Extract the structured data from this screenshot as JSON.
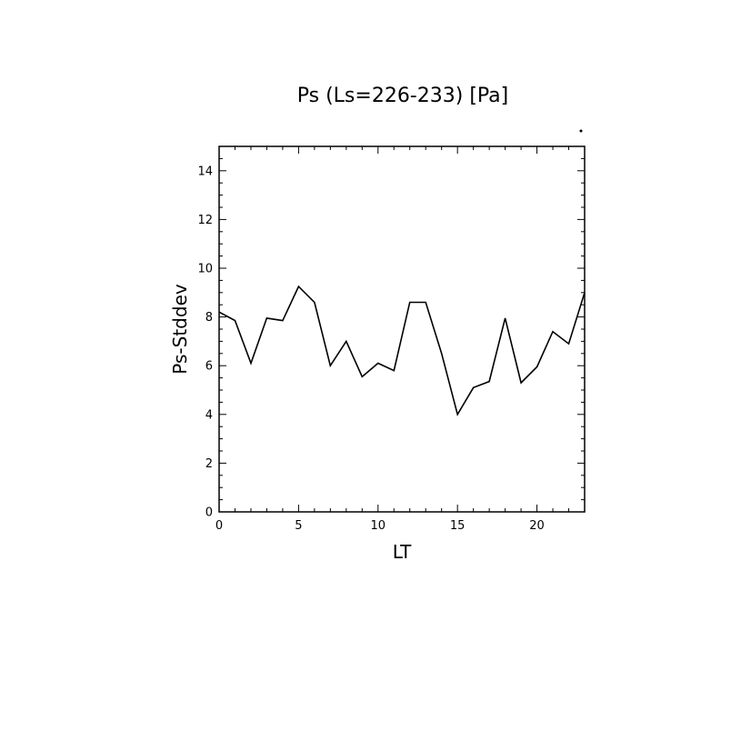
{
  "chart_data": {
    "type": "line",
    "title": "Ps (Ls=226-233) [Pa]",
    "xlabel": "LT",
    "ylabel": "Ps-Stddev",
    "xlim": [
      0,
      23
    ],
    "ylim": [
      0,
      15
    ],
    "x_ticks": [
      0,
      5,
      10,
      15,
      20
    ],
    "y_ticks": [
      0,
      2,
      4,
      6,
      8,
      10,
      12,
      14
    ],
    "x_minor_step": 1,
    "y_minor_step": 0.5,
    "grid": false,
    "legend": "none",
    "series": [
      {
        "x": [
          0,
          1,
          2,
          3,
          4,
          5,
          6,
          7,
          8,
          9,
          10,
          11,
          12,
          13,
          14,
          15,
          16,
          17,
          18,
          19,
          20,
          21,
          22,
          23
        ],
        "values": [
          8.2,
          7.85,
          6.1,
          7.95,
          7.85,
          9.25,
          8.6,
          6.0,
          7.0,
          5.55,
          6.1,
          5.8,
          8.6,
          8.6,
          6.5,
          4.0,
          5.1,
          5.35,
          7.95,
          5.3,
          5.95,
          7.4,
          6.9,
          9.0
        ]
      }
    ],
    "colors": {
      "line": "#000000",
      "frame": "#000000",
      "background": "#ffffff"
    }
  }
}
